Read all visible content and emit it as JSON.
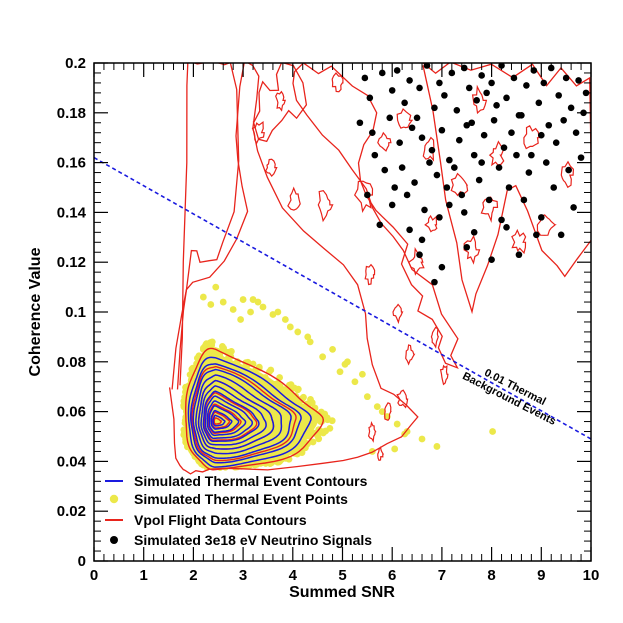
{
  "chart_data": {
    "type": "scatter",
    "title": "",
    "xlabel": "Summed SNR",
    "ylabel": "Coherence Value",
    "xlim": [
      0,
      10
    ],
    "ylim": [
      0,
      0.2
    ],
    "x_ticks": [
      "0",
      "1",
      "2",
      "3",
      "4",
      "5",
      "6",
      "7",
      "8",
      "9",
      "10"
    ],
    "y_ticks": [
      "0",
      "0.02",
      "0.04",
      "0.06",
      "0.08",
      "0.1",
      "0.12",
      "0.14",
      "0.16",
      "0.18",
      "0.2"
    ],
    "grid": false,
    "legend_position": "bottom-left",
    "colors": {
      "thermal_contours": "#1a1adf",
      "thermal_points": "#ece84a",
      "vpol_contours": "#e8241c",
      "neutrino_signals": "#000000",
      "cut_line": "#1a1adf"
    },
    "cut_line": {
      "name": "0.01 Thermal Background Events",
      "x": [
        0,
        10
      ],
      "y": [
        0.162,
        0.049
      ]
    },
    "annotation": {
      "line1": "0.01 Thermal",
      "line2": "Background Events",
      "x": 7.9,
      "y": 0.07
    },
    "legend": [
      {
        "label": "Simulated Thermal Event Contours",
        "marker": "line",
        "color": "#1a1adf"
      },
      {
        "label": "Simulated Thermal Event Points",
        "marker": "dot",
        "color": "#ece84a"
      },
      {
        "label": "Vpol Flight Data Contours",
        "marker": "line",
        "color": "#e8241c"
      },
      {
        "label": "Simulated 3e18 eV Neutrino Signals",
        "marker": "dot",
        "color": "#000000"
      }
    ],
    "thermal_contours": {
      "center": [
        2.45,
        0.056
      ],
      "levels": [
        0.2,
        0.35,
        0.5,
        0.65,
        0.8,
        0.95,
        1.12,
        1.3,
        1.5,
        1.7,
        1.9,
        2.1
      ]
    },
    "vpol_contours": {
      "center": [
        2.45,
        0.056
      ],
      "levels": [
        0.12,
        0.3,
        0.55,
        0.9,
        1.3,
        1.8,
        2.35
      ]
    },
    "vpol_outer_lobes": [
      {
        "x": [
          1.55,
          1.6,
          1.62,
          1.65,
          1.7,
          1.78,
          1.85,
          1.95,
          2.05,
          2.2,
          2.35,
          2.6,
          3.0,
          3.5,
          4.1,
          4.6,
          5.0,
          5.3,
          5.6,
          5.9,
          6.2,
          6.4,
          6.5,
          6.3,
          6.0,
          5.8,
          5.6,
          5.5,
          5.45,
          5.3,
          5.0,
          4.6,
          4.2,
          3.8,
          3.5,
          3.3,
          3.2,
          3.25,
          3.3,
          3.2,
          3.05,
          2.95,
          2.85,
          2.9,
          3.0,
          3.1,
          2.9,
          2.6,
          2.3,
          2.0,
          1.85,
          1.75,
          1.65,
          1.55
        ],
        "y": [
          0.07,
          0.058,
          0.048,
          0.042,
          0.038,
          0.0365,
          0.036,
          0.0358,
          0.0358,
          0.036,
          0.0362,
          0.0365,
          0.037,
          0.0375,
          0.0385,
          0.0395,
          0.041,
          0.042,
          0.044,
          0.047,
          0.05,
          0.054,
          0.058,
          0.062,
          0.066,
          0.07,
          0.078,
          0.09,
          0.1,
          0.11,
          0.118,
          0.125,
          0.133,
          0.142,
          0.155,
          0.165,
          0.175,
          0.185,
          0.195,
          0.2,
          0.2,
          0.19,
          0.17,
          0.16,
          0.15,
          0.14,
          0.13,
          0.12,
          0.115,
          0.113,
          0.11,
          0.1,
          0.085,
          0.07
        ]
      },
      {
        "x": [
          1.7,
          1.75,
          1.8,
          1.85,
          1.87,
          1.9,
          2.1,
          2.4,
          2.6,
          2.75,
          2.85,
          2.9,
          2.8,
          2.6,
          2.45,
          2.3,
          2.15,
          2.05,
          1.95,
          1.85,
          1.78,
          1.72,
          1.7
        ],
        "y": [
          0.07,
          0.09,
          0.12,
          0.16,
          0.19,
          0.2,
          0.2,
          0.2,
          0.2,
          0.2,
          0.19,
          0.16,
          0.14,
          0.128,
          0.122,
          0.12,
          0.121,
          0.125,
          0.125,
          0.11,
          0.1,
          0.085,
          0.07
        ]
      },
      {
        "x": [
          4.2,
          4.5,
          4.8,
          5.2,
          5.5,
          5.7,
          5.6,
          5.4,
          5.3,
          5.35,
          5.5,
          5.7,
          6.0,
          6.3,
          6.2,
          6.4,
          6.6,
          6.5,
          6.8,
          7.0,
          6.9,
          7.1,
          7.3,
          7.2,
          7.3,
          7.0,
          6.8,
          6.4,
          6.2,
          6.0,
          5.8,
          5.6,
          5.45,
          5.2,
          4.9,
          4.6,
          4.3,
          4.1,
          4.0,
          4.05,
          4.2
        ],
        "y": [
          0.2,
          0.195,
          0.198,
          0.19,
          0.186,
          0.18,
          0.172,
          0.168,
          0.16,
          0.152,
          0.146,
          0.14,
          0.135,
          0.128,
          0.12,
          0.112,
          0.106,
          0.1,
          0.096,
          0.09,
          0.085,
          0.08,
          0.078,
          0.082,
          0.09,
          0.1,
          0.11,
          0.118,
          0.125,
          0.13,
          0.136,
          0.142,
          0.15,
          0.158,
          0.165,
          0.172,
          0.18,
          0.186,
          0.192,
          0.197,
          0.2
        ]
      },
      {
        "x": [
          6.6,
          6.9,
          7.2,
          7.6,
          8.0,
          8.4,
          8.8,
          9.1,
          9.4,
          9.7,
          10.0,
          10.0,
          9.7,
          9.5,
          9.3,
          9.0,
          8.7,
          8.5,
          8.3,
          8.1,
          7.9,
          7.7,
          7.6,
          7.4,
          7.3,
          7.1,
          7.0,
          6.8,
          6.6
        ],
        "y": [
          0.2,
          0.195,
          0.2,
          0.196,
          0.199,
          0.194,
          0.2,
          0.192,
          0.197,
          0.19,
          0.195,
          0.13,
          0.122,
          0.115,
          0.118,
          0.125,
          0.14,
          0.15,
          0.148,
          0.132,
          0.118,
          0.108,
          0.1,
          0.112,
          0.128,
          0.145,
          0.16,
          0.18,
          0.2
        ]
      },
      {
        "x": [
          3.2,
          3.35,
          3.3,
          3.4,
          3.55,
          3.7,
          3.65,
          3.8,
          4.0,
          4.2,
          4.25,
          4.1,
          3.9,
          3.75,
          3.6,
          3.45,
          3.3,
          3.2
        ],
        "y": [
          0.176,
          0.18,
          0.188,
          0.192,
          0.188,
          0.19,
          0.196,
          0.2,
          0.198,
          0.192,
          0.184,
          0.178,
          0.18,
          0.176,
          0.172,
          0.168,
          0.17,
          0.176
        ]
      }
    ],
    "vpol_islands": [
      {
        "x": 3.3,
        "y": 0.172,
        "rx": 0.12,
        "ry": 0.004
      },
      {
        "x": 3.55,
        "y": 0.158,
        "rx": 0.1,
        "ry": 0.003
      },
      {
        "x": 4.05,
        "y": 0.145,
        "rx": 0.12,
        "ry": 0.004
      },
      {
        "x": 4.65,
        "y": 0.143,
        "rx": 0.14,
        "ry": 0.005
      },
      {
        "x": 5.45,
        "y": 0.147,
        "rx": 0.15,
        "ry": 0.005
      },
      {
        "x": 6.5,
        "y": 0.12,
        "rx": 0.12,
        "ry": 0.004
      },
      {
        "x": 6.8,
        "y": 0.135,
        "rx": 0.1,
        "ry": 0.003
      },
      {
        "x": 7.35,
        "y": 0.151,
        "rx": 0.14,
        "ry": 0.004
      },
      {
        "x": 7.6,
        "y": 0.125,
        "rx": 0.12,
        "ry": 0.004
      },
      {
        "x": 7.95,
        "y": 0.142,
        "rx": 0.13,
        "ry": 0.004
      },
      {
        "x": 8.1,
        "y": 0.163,
        "rx": 0.12,
        "ry": 0.004
      },
      {
        "x": 8.55,
        "y": 0.128,
        "rx": 0.12,
        "ry": 0.004
      },
      {
        "x": 9.1,
        "y": 0.135,
        "rx": 0.14,
        "ry": 0.004
      },
      {
        "x": 9.5,
        "y": 0.155,
        "rx": 0.12,
        "ry": 0.004
      },
      {
        "x": 7.75,
        "y": 0.185,
        "rx": 0.12,
        "ry": 0.004
      },
      {
        "x": 8.8,
        "y": 0.17,
        "rx": 0.12,
        "ry": 0.004
      },
      {
        "x": 6.75,
        "y": 0.165,
        "rx": 0.1,
        "ry": 0.004
      },
      {
        "x": 6.25,
        "y": 0.177,
        "rx": 0.12,
        "ry": 0.004
      },
      {
        "x": 5.85,
        "y": 0.168,
        "rx": 0.1,
        "ry": 0.003
      },
      {
        "x": 5.55,
        "y": 0.115,
        "rx": 0.08,
        "ry": 0.003
      },
      {
        "x": 6.1,
        "y": 0.1,
        "rx": 0.08,
        "ry": 0.003
      },
      {
        "x": 6.35,
        "y": 0.083,
        "rx": 0.07,
        "ry": 0.003
      },
      {
        "x": 6.85,
        "y": 0.09,
        "rx": 0.08,
        "ry": 0.003
      },
      {
        "x": 7.05,
        "y": 0.075,
        "rx": 0.06,
        "ry": 0.003
      },
      {
        "x": 5.9,
        "y": 0.06,
        "rx": 0.06,
        "ry": 0.003
      },
      {
        "x": 6.2,
        "y": 0.065,
        "rx": 0.08,
        "ry": 0.003
      },
      {
        "x": 5.6,
        "y": 0.052,
        "rx": 0.06,
        "ry": 0.003
      },
      {
        "x": 5.75,
        "y": 0.043,
        "rx": 0.05,
        "ry": 0.002
      },
      {
        "x": 4.9,
        "y": 0.192,
        "rx": 0.1,
        "ry": 0.003
      },
      {
        "x": 3.75,
        "y": 0.185,
        "rx": 0.08,
        "ry": 0.003
      }
    ],
    "thermal_outlier_points": {
      "x": [
        2.35,
        2.6,
        2.8,
        3.0,
        3.15,
        3.4,
        3.6,
        3.85,
        4.1,
        2.2,
        2.45,
        3.3,
        4.6,
        4.95,
        5.25,
        5.5,
        5.7,
        5.9,
        6.1,
        6.3,
        6.6,
        6.9,
        5.4,
        5.1,
        4.8,
        4.3,
        3.95,
        4.35,
        5.05,
        5.8,
        3.7,
        3.2,
        2.95,
        8.02,
        6.05,
        6.25,
        5.6
      ],
      "y": [
        0.103,
        0.104,
        0.101,
        0.105,
        0.1,
        0.102,
        0.099,
        0.097,
        0.092,
        0.106,
        0.11,
        0.104,
        0.082,
        0.076,
        0.072,
        0.066,
        0.062,
        0.058,
        0.055,
        0.052,
        0.049,
        0.046,
        0.075,
        0.08,
        0.085,
        0.09,
        0.094,
        0.088,
        0.079,
        0.06,
        0.1,
        0.105,
        0.097,
        0.052,
        0.045,
        0.051,
        0.044
      ]
    },
    "neutrino_signals": {
      "x": [
        5.45,
        5.55,
        5.8,
        6.0,
        6.1,
        6.25,
        6.35,
        6.5,
        6.55,
        6.7,
        6.85,
        6.95,
        7.05,
        7.2,
        7.3,
        7.45,
        7.55,
        7.6,
        7.7,
        7.8,
        7.9,
        8.0,
        8.1,
        8.2,
        8.3,
        8.45,
        8.55,
        8.7,
        8.85,
        8.95,
        9.05,
        9.2,
        9.35,
        9.5,
        9.6,
        9.75,
        9.9,
        5.35,
        5.6,
        5.95,
        6.15,
        6.4,
        6.6,
        6.8,
        7.0,
        7.15,
        7.35,
        7.5,
        7.65,
        7.85,
        8.05,
        8.25,
        8.4,
        8.6,
        8.8,
        9.0,
        9.15,
        9.3,
        9.45,
        9.7,
        9.85,
        6.2,
        6.45,
        6.75,
        6.9,
        7.1,
        7.25,
        7.4,
        7.75,
        8.15,
        8.5,
        8.75,
        9.1,
        5.85,
        6.05,
        6.3,
        6.65,
        7.8,
        8.35,
        8.65,
        5.65,
        6.0,
        6.95,
        7.45,
        7.65,
        7.95,
        8.2,
        9.25,
        9.55,
        9.8,
        8.9,
        5.5,
        5.75,
        6.6,
        7.15,
        7.5,
        8.3,
        9.0,
        9.4,
        9.65,
        6.55,
        8.0,
        6.35,
        7.0,
        6.85,
        8.55
      ],
      "y": [
        0.194,
        0.186,
        0.196,
        0.189,
        0.197,
        0.184,
        0.193,
        0.178,
        0.19,
        0.199,
        0.182,
        0.192,
        0.187,
        0.196,
        0.181,
        0.198,
        0.19,
        0.176,
        0.185,
        0.195,
        0.188,
        0.192,
        0.183,
        0.199,
        0.186,
        0.194,
        0.179,
        0.191,
        0.197,
        0.184,
        0.192,
        0.198,
        0.187,
        0.194,
        0.182,
        0.193,
        0.188,
        0.176,
        0.172,
        0.178,
        0.168,
        0.174,
        0.17,
        0.165,
        0.173,
        0.161,
        0.169,
        0.175,
        0.163,
        0.171,
        0.177,
        0.166,
        0.172,
        0.179,
        0.163,
        0.171,
        0.175,
        0.168,
        0.177,
        0.172,
        0.18,
        0.158,
        0.152,
        0.16,
        0.155,
        0.15,
        0.158,
        0.147,
        0.153,
        0.158,
        0.163,
        0.156,
        0.16,
        0.157,
        0.15,
        0.147,
        0.141,
        0.16,
        0.15,
        0.145,
        0.163,
        0.143,
        0.138,
        0.14,
        0.132,
        0.145,
        0.137,
        0.15,
        0.157,
        0.162,
        0.131,
        0.147,
        0.135,
        0.129,
        0.143,
        0.126,
        0.134,
        0.138,
        0.131,
        0.142,
        0.123,
        0.121,
        0.133,
        0.118,
        0.112,
        0.123
      ]
    }
  }
}
